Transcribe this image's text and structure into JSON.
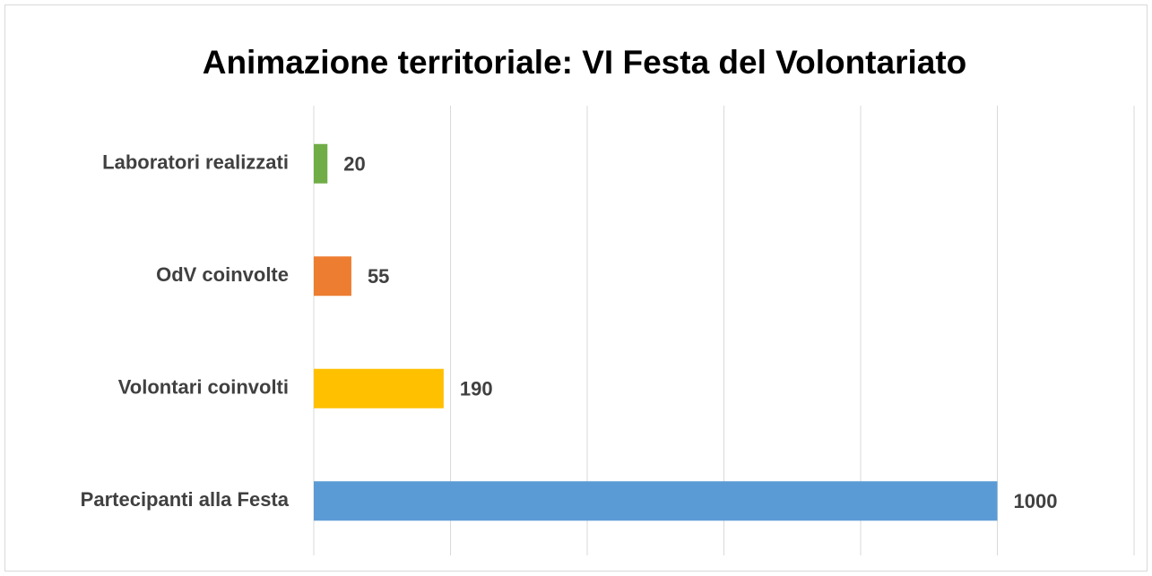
{
  "chart_data": {
    "type": "bar",
    "orientation": "horizontal",
    "title": "Animazione territoriale: VI Festa del Volontariato",
    "categories": [
      "Laboratori realizzati",
      "OdV coinvolte",
      "Volontari coinvolti",
      "Partecipanti alla Festa"
    ],
    "values": [
      20,
      55,
      190,
      1000
    ],
    "colors": [
      "#70ad47",
      "#ed7d31",
      "#ffc000",
      "#5b9bd5"
    ],
    "xlim": [
      0,
      1200
    ],
    "xticks": [
      0,
      200,
      400,
      600,
      800,
      1000,
      1200
    ],
    "grid": true
  }
}
